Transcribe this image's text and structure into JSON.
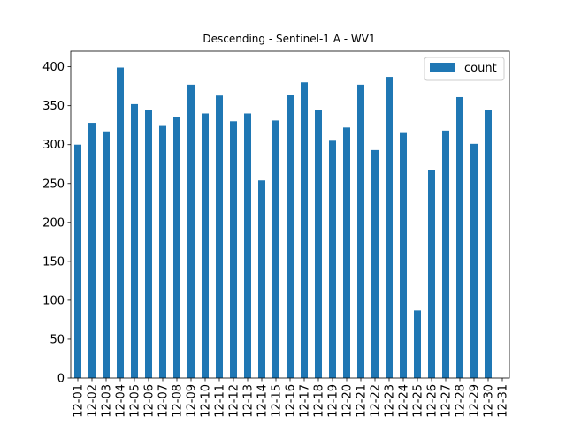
{
  "chart_data": {
    "type": "bar",
    "title": "Descending - Sentinel-1 A - WV1",
    "xlabel": "",
    "ylabel": "",
    "categories": [
      "12-01",
      "12-02",
      "12-03",
      "12-04",
      "12-05",
      "12-06",
      "12-07",
      "12-08",
      "12-09",
      "12-10",
      "12-11",
      "12-12",
      "12-13",
      "12-14",
      "12-15",
      "12-16",
      "12-17",
      "12-18",
      "12-19",
      "12-20",
      "12-21",
      "12-22",
      "12-23",
      "12-24",
      "12-25",
      "12-26",
      "12-27",
      "12-28",
      "12-29",
      "12-30",
      "12-31"
    ],
    "series": [
      {
        "name": "count",
        "color": "#1f77b4",
        "values": [
          300,
          328,
          317,
          399,
          352,
          344,
          324,
          336,
          377,
          340,
          363,
          330,
          340,
          254,
          331,
          364,
          380,
          345,
          305,
          322,
          377,
          293,
          387,
          316,
          87,
          267,
          318,
          361,
          301,
          344,
          0
        ]
      }
    ],
    "ylim": [
      0,
      420
    ],
    "yticks": [
      0,
      50,
      100,
      150,
      200,
      250,
      300,
      350,
      400
    ],
    "grid": false,
    "legend_position": "top-right"
  }
}
